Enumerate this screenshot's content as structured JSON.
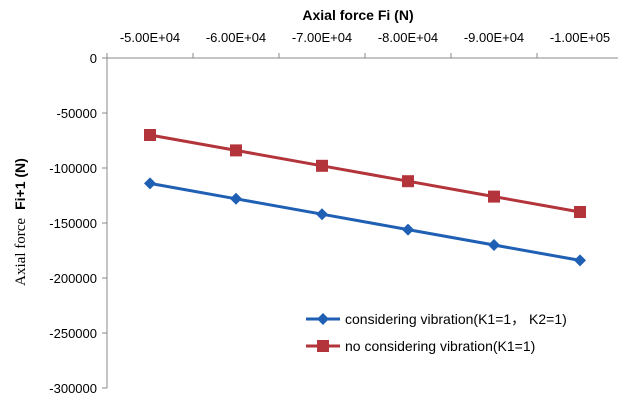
{
  "chart_data": {
    "type": "line",
    "title": "",
    "xlabel": "Axial force Fi (N)",
    "ylabel_prefix": "Axial force",
    "ylabel_suffix": "Fi+1 (N)",
    "x_tick_labels": [
      "-5.00E+04",
      "-6.00E+04",
      "-7.00E+04",
      "-8.00E+04",
      "-9.00E+04",
      "-1.00E+05"
    ],
    "x": [
      -50000,
      -60000,
      -70000,
      -80000,
      -90000,
      -100000
    ],
    "y_tick_labels": [
      "0",
      "-50000",
      "-100000",
      "-150000",
      "-200000",
      "-250000",
      "-300000"
    ],
    "ylim": [
      -300000,
      0
    ],
    "yticks": [
      0,
      -50000,
      -100000,
      -150000,
      -200000,
      -250000,
      -300000
    ],
    "grid": false,
    "legend_position": "bottom-right",
    "series": [
      {
        "name": "considering vibration(K1=1， K2=1)",
        "marker": "diamond",
        "color": "#1f5fb4",
        "values": [
          -114000,
          -128000,
          -142000,
          -156000,
          -170000,
          -184000
        ]
      },
      {
        "name": "no considering vibration(K1=1)",
        "marker": "square",
        "color": "#b3343a",
        "values": [
          -70000,
          -84000,
          -98000,
          -112000,
          -126000,
          -140000
        ]
      }
    ]
  }
}
